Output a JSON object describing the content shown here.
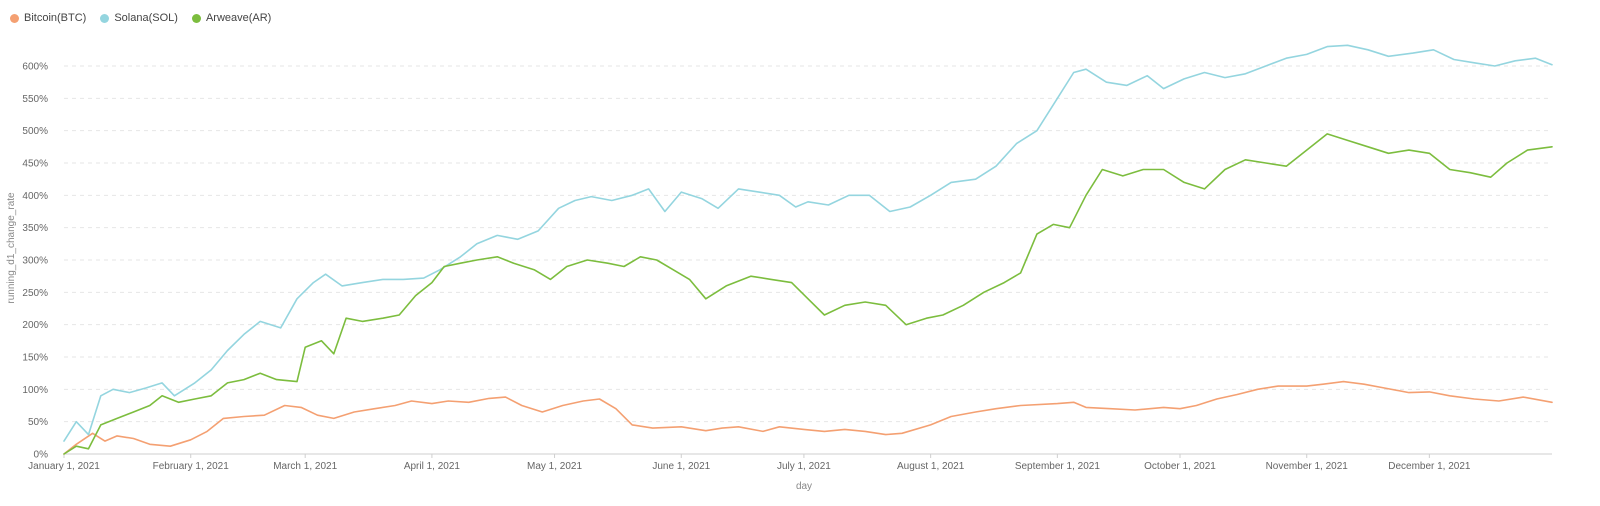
{
  "legend": [
    {
      "name": "Bitcoin(BTC)",
      "color": "#f4a072"
    },
    {
      "name": "Solana(SOL)",
      "color": "#94d5df"
    },
    {
      "name": "Arweave(AR)",
      "color": "#7cbd3e"
    }
  ],
  "chart_data": {
    "type": "line",
    "title": "",
    "xlabel": "day",
    "ylabel": "running_d1_change_rate",
    "ylim": [
      0,
      600
    ],
    "xlim": [
      "2021-01-01",
      "2021-12-31"
    ],
    "grid": true,
    "legend_position": "top-left",
    "y_ticks": [
      {
        "value": 0,
        "label": "0%"
      },
      {
        "value": 50,
        "label": "50%"
      },
      {
        "value": 100,
        "label": "100%"
      },
      {
        "value": 150,
        "label": "150%"
      },
      {
        "value": 200,
        "label": "200%"
      },
      {
        "value": 250,
        "label": "250%"
      },
      {
        "value": 300,
        "label": "300%"
      },
      {
        "value": 350,
        "label": "350%"
      },
      {
        "value": 400,
        "label": "400%"
      },
      {
        "value": 450,
        "label": "450%"
      },
      {
        "value": 500,
        "label": "500%"
      },
      {
        "value": 550,
        "label": "550%"
      },
      {
        "value": 600,
        "label": "600%"
      }
    ],
    "x_ticks": [
      {
        "value": "2021-01-01",
        "label": "January 1, 2021"
      },
      {
        "value": "2021-02-01",
        "label": "February 1, 2021"
      },
      {
        "value": "2021-03-01",
        "label": "March 1, 2021"
      },
      {
        "value": "2021-04-01",
        "label": "April 1, 2021"
      },
      {
        "value": "2021-05-01",
        "label": "May 1, 2021"
      },
      {
        "value": "2021-06-01",
        "label": "June 1, 2021"
      },
      {
        "value": "2021-07-01",
        "label": "July 1, 2021"
      },
      {
        "value": "2021-08-01",
        "label": "August 1, 2021"
      },
      {
        "value": "2021-09-01",
        "label": "September 1, 2021"
      },
      {
        "value": "2021-10-01",
        "label": "October 1, 2021"
      },
      {
        "value": "2021-11-01",
        "label": "November 1, 2021"
      },
      {
        "value": "2021-12-01",
        "label": "December 1, 2021"
      }
    ],
    "series": [
      {
        "name": "Bitcoin(BTC)",
        "color": "#f4a072",
        "points": [
          [
            "2021-01-01",
            0
          ],
          [
            "2021-01-04",
            15
          ],
          [
            "2021-01-08",
            32
          ],
          [
            "2021-01-11",
            20
          ],
          [
            "2021-01-14",
            28
          ],
          [
            "2021-01-18",
            24
          ],
          [
            "2021-01-22",
            15
          ],
          [
            "2021-01-27",
            12
          ],
          [
            "2021-02-01",
            22
          ],
          [
            "2021-02-05",
            35
          ],
          [
            "2021-02-09",
            55
          ],
          [
            "2021-02-14",
            58
          ],
          [
            "2021-02-19",
            60
          ],
          [
            "2021-02-24",
            75
          ],
          [
            "2021-02-28",
            72
          ],
          [
            "2021-03-04",
            60
          ],
          [
            "2021-03-08",
            55
          ],
          [
            "2021-03-13",
            65
          ],
          [
            "2021-03-18",
            70
          ],
          [
            "2021-03-23",
            75
          ],
          [
            "2021-03-27",
            82
          ],
          [
            "2021-04-01",
            78
          ],
          [
            "2021-04-05",
            82
          ],
          [
            "2021-04-10",
            80
          ],
          [
            "2021-04-15",
            86
          ],
          [
            "2021-04-19",
            88
          ],
          [
            "2021-04-23",
            75
          ],
          [
            "2021-04-28",
            65
          ],
          [
            "2021-05-03",
            75
          ],
          [
            "2021-05-08",
            82
          ],
          [
            "2021-05-12",
            85
          ],
          [
            "2021-05-16",
            70
          ],
          [
            "2021-05-20",
            45
          ],
          [
            "2021-05-25",
            40
          ],
          [
            "2021-06-01",
            42
          ],
          [
            "2021-06-07",
            36
          ],
          [
            "2021-06-11",
            40
          ],
          [
            "2021-06-15",
            42
          ],
          [
            "2021-06-21",
            35
          ],
          [
            "2021-06-25",
            42
          ],
          [
            "2021-07-01",
            38
          ],
          [
            "2021-07-06",
            35
          ],
          [
            "2021-07-11",
            38
          ],
          [
            "2021-07-16",
            35
          ],
          [
            "2021-07-21",
            30
          ],
          [
            "2021-07-25",
            32
          ],
          [
            "2021-08-01",
            45
          ],
          [
            "2021-08-06",
            58
          ],
          [
            "2021-08-12",
            65
          ],
          [
            "2021-08-17",
            70
          ],
          [
            "2021-08-23",
            75
          ],
          [
            "2021-09-01",
            78
          ],
          [
            "2021-09-05",
            80
          ],
          [
            "2021-09-08",
            72
          ],
          [
            "2021-09-14",
            70
          ],
          [
            "2021-09-20",
            68
          ],
          [
            "2021-09-27",
            72
          ],
          [
            "2021-10-01",
            70
          ],
          [
            "2021-10-05",
            75
          ],
          [
            "2021-10-10",
            85
          ],
          [
            "2021-10-15",
            92
          ],
          [
            "2021-10-20",
            100
          ],
          [
            "2021-10-25",
            105
          ],
          [
            "2021-11-01",
            105
          ],
          [
            "2021-11-05",
            108
          ],
          [
            "2021-11-10",
            112
          ],
          [
            "2021-11-15",
            108
          ],
          [
            "2021-11-20",
            102
          ],
          [
            "2021-11-26",
            95
          ],
          [
            "2021-12-01",
            96
          ],
          [
            "2021-12-06",
            90
          ],
          [
            "2021-12-12",
            85
          ],
          [
            "2021-12-18",
            82
          ],
          [
            "2021-12-24",
            88
          ],
          [
            "2021-12-31",
            80
          ]
        ]
      },
      {
        "name": "Solana(SOL)",
        "color": "#94d5df",
        "points": [
          [
            "2021-01-01",
            20
          ],
          [
            "2021-01-04",
            50
          ],
          [
            "2021-01-07",
            30
          ],
          [
            "2021-01-10",
            90
          ],
          [
            "2021-01-13",
            100
          ],
          [
            "2021-01-17",
            95
          ],
          [
            "2021-01-21",
            102
          ],
          [
            "2021-01-25",
            110
          ],
          [
            "2021-01-28",
            90
          ],
          [
            "2021-02-02",
            110
          ],
          [
            "2021-02-06",
            130
          ],
          [
            "2021-02-10",
            160
          ],
          [
            "2021-02-14",
            185
          ],
          [
            "2021-02-18",
            205
          ],
          [
            "2021-02-23",
            195
          ],
          [
            "2021-02-27",
            240
          ],
          [
            "2021-03-03",
            265
          ],
          [
            "2021-03-06",
            278
          ],
          [
            "2021-03-10",
            260
          ],
          [
            "2021-03-15",
            265
          ],
          [
            "2021-03-20",
            270
          ],
          [
            "2021-03-25",
            270
          ],
          [
            "2021-03-30",
            272
          ],
          [
            "2021-04-03",
            285
          ],
          [
            "2021-04-08",
            305
          ],
          [
            "2021-04-12",
            325
          ],
          [
            "2021-04-17",
            338
          ],
          [
            "2021-04-22",
            332
          ],
          [
            "2021-04-27",
            345
          ],
          [
            "2021-05-02",
            380
          ],
          [
            "2021-05-06",
            392
          ],
          [
            "2021-05-10",
            398
          ],
          [
            "2021-05-15",
            392
          ],
          [
            "2021-05-20",
            400
          ],
          [
            "2021-05-24",
            410
          ],
          [
            "2021-05-28",
            375
          ],
          [
            "2021-06-01",
            405
          ],
          [
            "2021-06-06",
            395
          ],
          [
            "2021-06-10",
            380
          ],
          [
            "2021-06-15",
            410
          ],
          [
            "2021-06-20",
            405
          ],
          [
            "2021-06-25",
            400
          ],
          [
            "2021-06-29",
            382
          ],
          [
            "2021-07-02",
            390
          ],
          [
            "2021-07-07",
            385
          ],
          [
            "2021-07-12",
            400
          ],
          [
            "2021-07-17",
            400
          ],
          [
            "2021-07-22",
            375
          ],
          [
            "2021-07-27",
            382
          ],
          [
            "2021-08-01",
            400
          ],
          [
            "2021-08-06",
            420
          ],
          [
            "2021-08-12",
            425
          ],
          [
            "2021-08-17",
            445
          ],
          [
            "2021-08-22",
            480
          ],
          [
            "2021-08-27",
            500
          ],
          [
            "2021-09-01",
            550
          ],
          [
            "2021-09-05",
            590
          ],
          [
            "2021-09-08",
            595
          ],
          [
            "2021-09-13",
            575
          ],
          [
            "2021-09-18",
            570
          ],
          [
            "2021-09-23",
            585
          ],
          [
            "2021-09-27",
            565
          ],
          [
            "2021-10-02",
            580
          ],
          [
            "2021-10-07",
            590
          ],
          [
            "2021-10-12",
            582
          ],
          [
            "2021-10-17",
            588
          ],
          [
            "2021-10-22",
            600
          ],
          [
            "2021-10-27",
            612
          ],
          [
            "2021-11-01",
            618
          ],
          [
            "2021-11-06",
            630
          ],
          [
            "2021-11-11",
            632
          ],
          [
            "2021-11-16",
            625
          ],
          [
            "2021-11-21",
            615
          ],
          [
            "2021-11-27",
            620
          ],
          [
            "2021-12-02",
            625
          ],
          [
            "2021-12-07",
            610
          ],
          [
            "2021-12-12",
            605
          ],
          [
            "2021-12-17",
            600
          ],
          [
            "2021-12-22",
            608
          ],
          [
            "2021-12-27",
            612
          ],
          [
            "2021-12-31",
            602
          ]
        ]
      },
      {
        "name": "Arweave(AR)",
        "color": "#7cbd3e",
        "points": [
          [
            "2021-01-01",
            0
          ],
          [
            "2021-01-04",
            12
          ],
          [
            "2021-01-07",
            8
          ],
          [
            "2021-01-10",
            45
          ],
          [
            "2021-01-14",
            55
          ],
          [
            "2021-01-18",
            65
          ],
          [
            "2021-01-22",
            75
          ],
          [
            "2021-01-25",
            90
          ],
          [
            "2021-01-29",
            80
          ],
          [
            "2021-02-02",
            85
          ],
          [
            "2021-02-06",
            90
          ],
          [
            "2021-02-10",
            110
          ],
          [
            "2021-02-14",
            115
          ],
          [
            "2021-02-18",
            125
          ],
          [
            "2021-02-22",
            115
          ],
          [
            "2021-02-27",
            112
          ],
          [
            "2021-03-01",
            165
          ],
          [
            "2021-03-05",
            175
          ],
          [
            "2021-03-08",
            155
          ],
          [
            "2021-03-11",
            210
          ],
          [
            "2021-03-15",
            205
          ],
          [
            "2021-03-20",
            210
          ],
          [
            "2021-03-24",
            215
          ],
          [
            "2021-03-28",
            245
          ],
          [
            "2021-04-01",
            265
          ],
          [
            "2021-04-04",
            290
          ],
          [
            "2021-04-08",
            295
          ],
          [
            "2021-04-12",
            300
          ],
          [
            "2021-04-17",
            305
          ],
          [
            "2021-04-21",
            295
          ],
          [
            "2021-04-26",
            285
          ],
          [
            "2021-04-30",
            270
          ],
          [
            "2021-05-04",
            290
          ],
          [
            "2021-05-09",
            300
          ],
          [
            "2021-05-14",
            295
          ],
          [
            "2021-05-18",
            290
          ],
          [
            "2021-05-22",
            305
          ],
          [
            "2021-05-26",
            300
          ],
          [
            "2021-05-30",
            285
          ],
          [
            "2021-06-03",
            270
          ],
          [
            "2021-06-07",
            240
          ],
          [
            "2021-06-12",
            260
          ],
          [
            "2021-06-18",
            275
          ],
          [
            "2021-06-23",
            270
          ],
          [
            "2021-06-28",
            265
          ],
          [
            "2021-07-02",
            240
          ],
          [
            "2021-07-06",
            215
          ],
          [
            "2021-07-11",
            230
          ],
          [
            "2021-07-16",
            235
          ],
          [
            "2021-07-21",
            230
          ],
          [
            "2021-07-26",
            200
          ],
          [
            "2021-07-31",
            210
          ],
          [
            "2021-08-04",
            215
          ],
          [
            "2021-08-09",
            230
          ],
          [
            "2021-08-14",
            250
          ],
          [
            "2021-08-19",
            265
          ],
          [
            "2021-08-23",
            280
          ],
          [
            "2021-08-27",
            340
          ],
          [
            "2021-08-31",
            355
          ],
          [
            "2021-09-04",
            350
          ],
          [
            "2021-09-08",
            400
          ],
          [
            "2021-09-12",
            440
          ],
          [
            "2021-09-17",
            430
          ],
          [
            "2021-09-22",
            440
          ],
          [
            "2021-09-27",
            440
          ],
          [
            "2021-10-02",
            420
          ],
          [
            "2021-10-07",
            410
          ],
          [
            "2021-10-12",
            440
          ],
          [
            "2021-10-17",
            455
          ],
          [
            "2021-10-22",
            450
          ],
          [
            "2021-10-27",
            445
          ],
          [
            "2021-11-01",
            470
          ],
          [
            "2021-11-06",
            495
          ],
          [
            "2021-11-11",
            485
          ],
          [
            "2021-11-16",
            475
          ],
          [
            "2021-11-21",
            465
          ],
          [
            "2021-11-26",
            470
          ],
          [
            "2021-12-01",
            465
          ],
          [
            "2021-12-06",
            440
          ],
          [
            "2021-12-11",
            435
          ],
          [
            "2021-12-16",
            428
          ],
          [
            "2021-12-20",
            450
          ],
          [
            "2021-12-25",
            470
          ],
          [
            "2021-12-31",
            475
          ]
        ]
      }
    ]
  }
}
